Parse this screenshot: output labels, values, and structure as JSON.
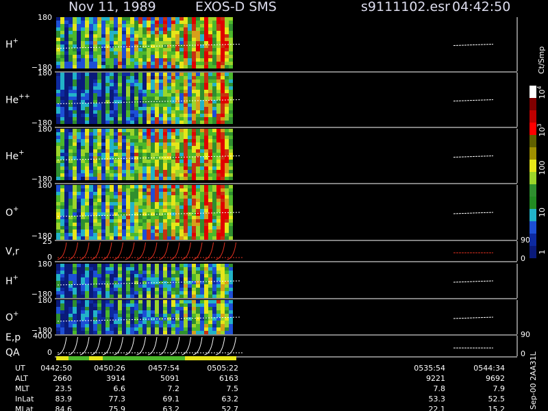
{
  "header": {
    "date": "Nov 11, 1989",
    "mission": "EXOS-D SMS",
    "file": "s9111102.esr",
    "time": "04:42:50"
  },
  "panels": [
    {
      "label": "H",
      "charge": "+",
      "ticks": [
        "180",
        "−180"
      ]
    },
    {
      "label": "He",
      "charge": "++",
      "ticks": [
        "180",
        "−180"
      ]
    },
    {
      "label": "He",
      "charge": "+",
      "ticks": [
        "180",
        "−180"
      ]
    },
    {
      "label": "O",
      "charge": "+",
      "ticks": [
        "180",
        "−180"
      ]
    },
    {
      "label": "V,r",
      "ticks": [
        "25",
        "0"
      ],
      "right_ticks": [
        "90",
        "0"
      ]
    },
    {
      "label": "H",
      "charge": "+",
      "ticks": [
        "180",
        "−180"
      ]
    },
    {
      "label": "O",
      "charge": "+",
      "ticks": [
        "180",
        "−180"
      ]
    },
    {
      "label": "E,p",
      "sublabel": "QA",
      "ticks": [
        "4000",
        "0"
      ],
      "right_ticks": [
        "90",
        "0"
      ]
    }
  ],
  "colorbar": {
    "unit": "Ct/Smp",
    "ticks": [
      {
        "base": "1"
      },
      {
        "base": "10"
      },
      {
        "base": "100"
      },
      {
        "base": "10",
        "exp": "3"
      },
      {
        "base": "10",
        "exp": "4"
      }
    ]
  },
  "table": {
    "rows": [
      {
        "name": "UT",
        "values": [
          "0442:50",
          "0450:26",
          "0457:54",
          "0505:22",
          "0535:54",
          "0544:34"
        ]
      },
      {
        "name": "ALT",
        "values": [
          "2660",
          "3914",
          "5091",
          "6163",
          "9221",
          "9692"
        ]
      },
      {
        "name": "MLT",
        "values": [
          "23.5",
          "6.6",
          "7.2",
          "7.5",
          "7.8",
          "7.9"
        ]
      },
      {
        "name": "InLat",
        "values": [
          "83.9",
          "77.3",
          "69.1",
          "63.2",
          "53.3",
          "52.5"
        ]
      },
      {
        "name": "MLat",
        "values": [
          "84.6",
          "75.9",
          "63.2",
          "52.7",
          "22.1",
          "15.2"
        ]
      }
    ]
  },
  "footer": {
    "code": "Sep-00 2AA31L"
  }
}
